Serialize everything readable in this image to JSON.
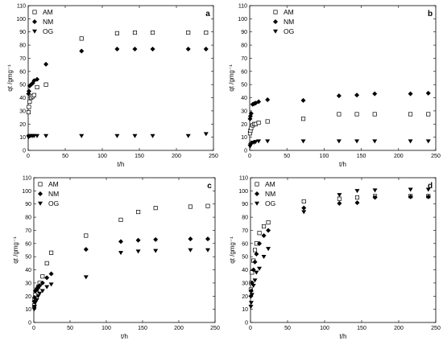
{
  "chart_data": [
    {
      "type": "scatter",
      "panel_label": "a",
      "xlabel": "t/h",
      "ylabel": "qt /gmg⁻¹",
      "xlim": [
        0,
        250
      ],
      "ylim": [
        0,
        110
      ],
      "x_ticks": [
        0,
        50,
        100,
        150,
        200,
        250
      ],
      "y_ticks": [
        0,
        10,
        20,
        30,
        40,
        50,
        60,
        70,
        80,
        90,
        100,
        110
      ],
      "legend_position": "top-left",
      "series": [
        {
          "name": "AM",
          "marker": "square-open",
          "x": [
            0.5,
            1,
            2,
            4,
            6,
            8,
            12,
            24,
            72,
            120,
            144,
            168,
            216,
            240
          ],
          "y": [
            29,
            33,
            37,
            40,
            41,
            42,
            48,
            50,
            85,
            89,
            89.5,
            89.5,
            89.5,
            89.5
          ]
        },
        {
          "name": "NM",
          "marker": "diamond-filled",
          "x": [
            0.5,
            1,
            2,
            4,
            6,
            8,
            12,
            24,
            72,
            120,
            144,
            168,
            216,
            240
          ],
          "y": [
            43,
            45,
            49,
            50,
            51,
            53,
            54,
            65.5,
            75.5,
            77,
            77,
            77,
            77,
            77
          ]
        },
        {
          "name": "OG",
          "marker": "triangle-down-filled",
          "x": [
            0.5,
            1,
            2,
            4,
            6,
            8,
            12,
            24,
            72,
            120,
            144,
            168,
            216,
            240
          ],
          "y": [
            10,
            10.5,
            11,
            11,
            11,
            11,
            11,
            11,
            11,
            11,
            11,
            11,
            11,
            12.5
          ]
        }
      ]
    },
    {
      "type": "scatter",
      "panel_label": "b",
      "xlabel": "t/h",
      "ylabel": "qt /gmg⁻¹",
      "xlim": [
        0,
        250
      ],
      "ylim": [
        0,
        110
      ],
      "x_ticks": [
        0,
        50,
        100,
        150,
        200,
        250
      ],
      "y_ticks": [
        0,
        10,
        20,
        30,
        40,
        50,
        60,
        70,
        80,
        90,
        100,
        110
      ],
      "legend_position": "top-center",
      "series": [
        {
          "name": "AM",
          "marker": "square-open",
          "x": [
            0.5,
            1,
            2,
            4,
            6,
            8,
            12,
            24,
            72,
            120,
            144,
            168,
            216,
            240
          ],
          "y": [
            13,
            15,
            17,
            19,
            20,
            20,
            21,
            22,
            24,
            27.5,
            27.5,
            27.5,
            27.5,
            27.5
          ]
        },
        {
          "name": "NM",
          "marker": "diamond-filled",
          "x": [
            0.5,
            1,
            2,
            4,
            6,
            8,
            12,
            24,
            72,
            120,
            144,
            168,
            216,
            240
          ],
          "y": [
            24,
            26,
            28,
            35,
            35.5,
            36,
            37,
            38.5,
            38,
            41.5,
            42,
            43,
            43,
            43.5
          ]
        },
        {
          "name": "OG",
          "marker": "triangle-down-filled",
          "x": [
            0.5,
            1,
            2,
            4,
            6,
            8,
            12,
            24,
            72,
            120,
            144,
            168,
            216,
            240
          ],
          "y": [
            3,
            4,
            5,
            6,
            6,
            6.5,
            7,
            7,
            7,
            7,
            7,
            7,
            7,
            7
          ]
        }
      ]
    },
    {
      "type": "scatter",
      "panel_label": "c",
      "xlabel": "t/h",
      "ylabel": "qt /gmg⁻¹",
      "xlim": [
        0,
        250
      ],
      "ylim": [
        0,
        110
      ],
      "x_ticks": [
        0,
        50,
        100,
        150,
        200,
        250
      ],
      "y_ticks": [
        0,
        10,
        20,
        30,
        40,
        50,
        60,
        70,
        80,
        90,
        100,
        110
      ],
      "legend_position": "top-left",
      "series": [
        {
          "name": "AM",
          "marker": "square-open",
          "x": [
            0.5,
            1,
            2,
            4,
            6,
            8,
            12,
            18,
            24,
            72,
            120,
            144,
            168,
            216,
            240
          ],
          "y": [
            13,
            17,
            21,
            25,
            27,
            30,
            35,
            45,
            53,
            66,
            78,
            84,
            87,
            88,
            88.5
          ]
        },
        {
          "name": "NM",
          "marker": "diamond-filled",
          "x": [
            0.5,
            1,
            2,
            4,
            6,
            8,
            12,
            18,
            24,
            72,
            120,
            144,
            168,
            216,
            240
          ],
          "y": [
            16,
            19,
            24,
            25,
            27,
            28,
            30,
            34,
            37,
            55.5,
            61.5,
            62.5,
            63,
            63.5,
            63.5
          ]
        },
        {
          "name": "OG",
          "marker": "triangle-down-filled",
          "x": [
            0.5,
            1,
            2,
            4,
            6,
            8,
            12,
            18,
            24,
            72,
            120,
            144,
            168,
            216,
            240
          ],
          "y": [
            10,
            12,
            15,
            17,
            20,
            22,
            24,
            27,
            29,
            34.5,
            53,
            54,
            54.5,
            55,
            55
          ]
        }
      ]
    },
    {
      "type": "scatter",
      "panel_label": "d",
      "xlabel": "t/h",
      "ylabel": "qt /gmg⁻¹",
      "xlim": [
        0,
        250
      ],
      "ylim": [
        0,
        110
      ],
      "x_ticks": [
        0,
        50,
        100,
        150,
        200,
        250
      ],
      "y_ticks": [
        0,
        10,
        20,
        30,
        40,
        50,
        60,
        70,
        80,
        90,
        100,
        110
      ],
      "legend_position": "top-left",
      "series": [
        {
          "name": "AM",
          "marker": "square-open",
          "x": [
            0.5,
            1,
            2,
            4,
            6,
            8,
            12,
            18,
            24,
            72,
            120,
            144,
            168,
            216,
            240
          ],
          "y": [
            25,
            30,
            38,
            47,
            55,
            60,
            68,
            73,
            76,
            92,
            94,
            95,
            96,
            96,
            96
          ]
        },
        {
          "name": "NM",
          "marker": "diamond-filled",
          "x": [
            0.5,
            1,
            2,
            4,
            6,
            8,
            12,
            18,
            24,
            72,
            120,
            144,
            168,
            216,
            240
          ],
          "y": [
            20,
            24,
            30,
            40,
            46,
            52,
            60,
            66,
            70,
            87,
            90.5,
            91,
            95,
            95.5,
            95.5
          ]
        },
        {
          "name": "OG",
          "marker": "triangle-down-filled",
          "x": [
            0.5,
            1,
            2,
            4,
            6,
            8,
            12,
            18,
            24,
            72,
            120,
            144,
            168,
            216,
            240
          ],
          "y": [
            12,
            15,
            21,
            28,
            32,
            38,
            41,
            50,
            56,
            84,
            97,
            100,
            100.5,
            101,
            101
          ]
        }
      ]
    }
  ]
}
